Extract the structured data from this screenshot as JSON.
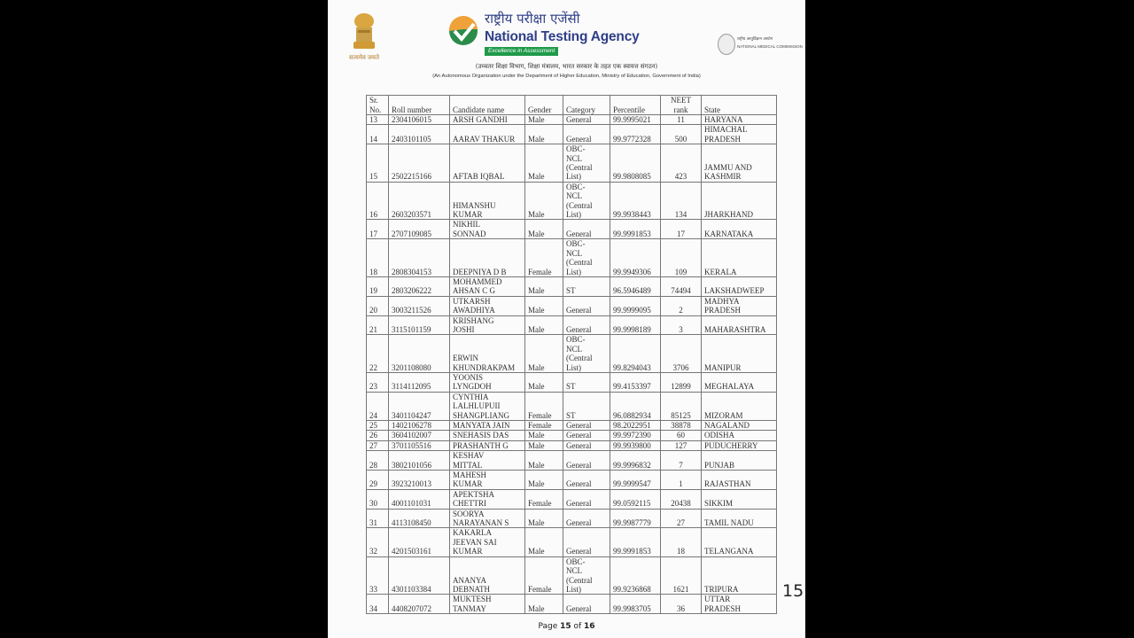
{
  "header": {
    "emblem_motto": "सत्यमेव जयते",
    "hindi_title": "राष्ट्रीय परीक्षा एजेंसी",
    "title": "National Testing Agency",
    "tagline": "Excellence in Assessment",
    "nmc_hindi": "राष्ट्रीय आयुर्विज्ञान आयोग",
    "nmc_english": "NATIONAL MEDICAL COMMISSION",
    "subtitle_hindi": "(उच्चतर शिक्षा विभाग, शिक्षा मंत्रालय, भारत सरकार के तहत एक स्वायत्त संगठन)",
    "subtitle_english": "(An Autonomous Organization under the Department of Higher Education, Ministry of Education, Government of India)",
    "colors": {
      "brand_blue": "#2f3e87",
      "tagline_green": "#1f9a4a",
      "check_orange": "#f0a23a"
    }
  },
  "table": {
    "columns": [
      "Sr.\nNo.",
      "Roll number",
      "Candidate name",
      "Gender",
      "Category",
      "Percentile",
      "NEET\nrank",
      "State"
    ],
    "rows": [
      [
        "13",
        "2304106015",
        "ARSH GANDHI",
        "Male",
        "General",
        "99.9995021",
        "11",
        "HARYANA"
      ],
      [
        "14",
        "2403101105",
        "AARAV THAKUR",
        "Male",
        "General",
        "99.9772328",
        "500",
        "HIMACHAL\nPRADESH"
      ],
      [
        "15",
        "2502215166",
        "AFTAB IQBAL",
        "Male",
        "OBC-\nNCL\n(Central\nList)",
        "99.9808085",
        "423",
        "JAMMU AND\nKASHMIR"
      ],
      [
        "16",
        "2603203571",
        "HIMANSHU\nKUMAR",
        "Male",
        "OBC-\nNCL\n(Central\nList)",
        "99.9938443",
        "134",
        "JHARKHAND"
      ],
      [
        "17",
        "2707109085",
        "NIKHIL\nSONNAD",
        "Male",
        "General",
        "99.9991853",
        "17",
        "KARNATAKA"
      ],
      [
        "18",
        "2808304153",
        "DEEPNIYA D B",
        "Female",
        "OBC-\nNCL\n(Central\nList)",
        "99.9949306",
        "109",
        "KERALA"
      ],
      [
        "19",
        "2803206222",
        "MOHAMMED\nAHSAN C G",
        "Male",
        "ST",
        "96.5946489",
        "74494",
        "LAKSHADWEEP"
      ],
      [
        "20",
        "3003211526",
        "UTKARSH\nAWADHIYA",
        "Male",
        "General",
        "99.9999095",
        "2",
        "MADHYA\nPRADESH"
      ],
      [
        "21",
        "3115101159",
        "KRISHANG\nJOSHI",
        "Male",
        "General",
        "99.9998189",
        "3",
        "MAHARASHTRA"
      ],
      [
        "22",
        "3201108080",
        "ERWIN\nKHUNDRAKPAM",
        "Male",
        "OBC-\nNCL\n(Central\nList)",
        "99.8294043",
        "3706",
        "MANIPUR"
      ],
      [
        "23",
        "3114112095",
        "YOONIS\nLYNGDOH",
        "Male",
        "ST",
        "99.4153397",
        "12899",
        "MEGHALAYA"
      ],
      [
        "24",
        "3401104247",
        "CYNTHIA\nLALHLUPUII\nSHANGPLIANG",
        "Female",
        "ST",
        "96.0882934",
        "85125",
        "MIZORAM"
      ],
      [
        "25",
        "1402106278",
        "MANYATA JAIN",
        "Female",
        "General",
        "98.2022951",
        "38878",
        "NAGALAND"
      ],
      [
        "26",
        "3604102007",
        "SNEHASIS DAS",
        "Male",
        "General",
        "99.9972390",
        "60",
        "ODISHA"
      ],
      [
        "27",
        "3701105516",
        "PRASHANTH G",
        "Male",
        "General",
        "99.9939800",
        "127",
        "PUDUCHERRY"
      ],
      [
        "28",
        "3802101056",
        "KESHAV\nMITTAL",
        "Male",
        "General",
        "99.9996832",
        "7",
        "PUNJAB"
      ],
      [
        "29",
        "3923210013",
        "MAHESH\nKUMAR",
        "Male",
        "General",
        "99.9999547",
        "1",
        "RAJASTHAN"
      ],
      [
        "30",
        "4001101031",
        "APEKTSHA\nCHETTRI",
        "Female",
        "General",
        "99.0592115",
        "20438",
        "SIKKIM"
      ],
      [
        "31",
        "4113108450",
        "SOORYA\nNARAYANAN S",
        "Male",
        "General",
        "99.9987779",
        "27",
        "TAMIL NADU"
      ],
      [
        "32",
        "4201503161",
        "KAKARLA\nJEEVAN SAI\nKUMAR",
        "Male",
        "General",
        "99.9991853",
        "18",
        "TELANGANA"
      ],
      [
        "33",
        "4301103384",
        "ANANYA\nDEBNATH",
        "Female",
        "OBC-\nNCL\n(Central\nList)",
        "99.9236868",
        "1621",
        "TRIPURA"
      ],
      [
        "34",
        "4408207072",
        "MUKTESH\nTANMAY",
        "Male",
        "General",
        "99.9983705",
        "36",
        "UTTAR\nPRADESH"
      ]
    ]
  },
  "footer": {
    "page_prefix": "Page ",
    "page_current": "15",
    "page_of": " of ",
    "page_total": "16"
  },
  "page_number_overlay": "15"
}
